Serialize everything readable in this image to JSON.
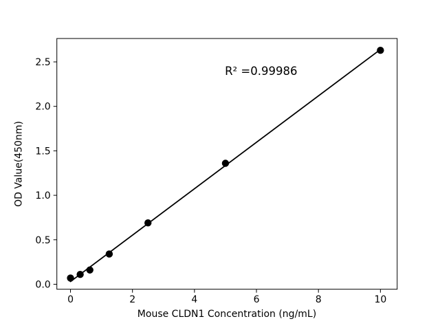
{
  "chart_data": {
    "type": "scatter",
    "title": "",
    "xlabel": "Mouse CLDN1 Concentration (ng/mL)",
    "ylabel": "OD Value(450nm)",
    "annotation": {
      "text": "R² =0.99986",
      "x": 6.15,
      "y": 2.4
    },
    "series": [
      {
        "name": "standards",
        "marker": "circle",
        "x": [
          0,
          0.3125,
          0.625,
          1.25,
          2.5,
          5,
          10
        ],
        "y": [
          0.07,
          0.11,
          0.16,
          0.34,
          0.69,
          1.36,
          2.63
        ]
      }
    ],
    "fit_line": {
      "x": [
        0,
        10
      ],
      "y": [
        0.03,
        2.64
      ],
      "slope": 0.261,
      "intercept": 0.03
    },
    "xticks": [
      0,
      2,
      4,
      6,
      8,
      10
    ],
    "xtick_labels": [
      "0",
      "2",
      "4",
      "6",
      "8",
      "10"
    ],
    "yticks": [
      0.0,
      0.5,
      1.0,
      1.5,
      2.0,
      2.5
    ],
    "ytick_labels": [
      "0.0",
      "0.5",
      "1.0",
      "1.5",
      "2.0",
      "2.5"
    ],
    "xlim": [
      -0.44,
      10.54
    ],
    "ylim": [
      -0.056,
      2.763
    ],
    "grid": false,
    "legend": "none",
    "marker_color": "#000000",
    "line_color": "#000000",
    "axis_color": "#000000",
    "background_color": "#ffffff"
  }
}
